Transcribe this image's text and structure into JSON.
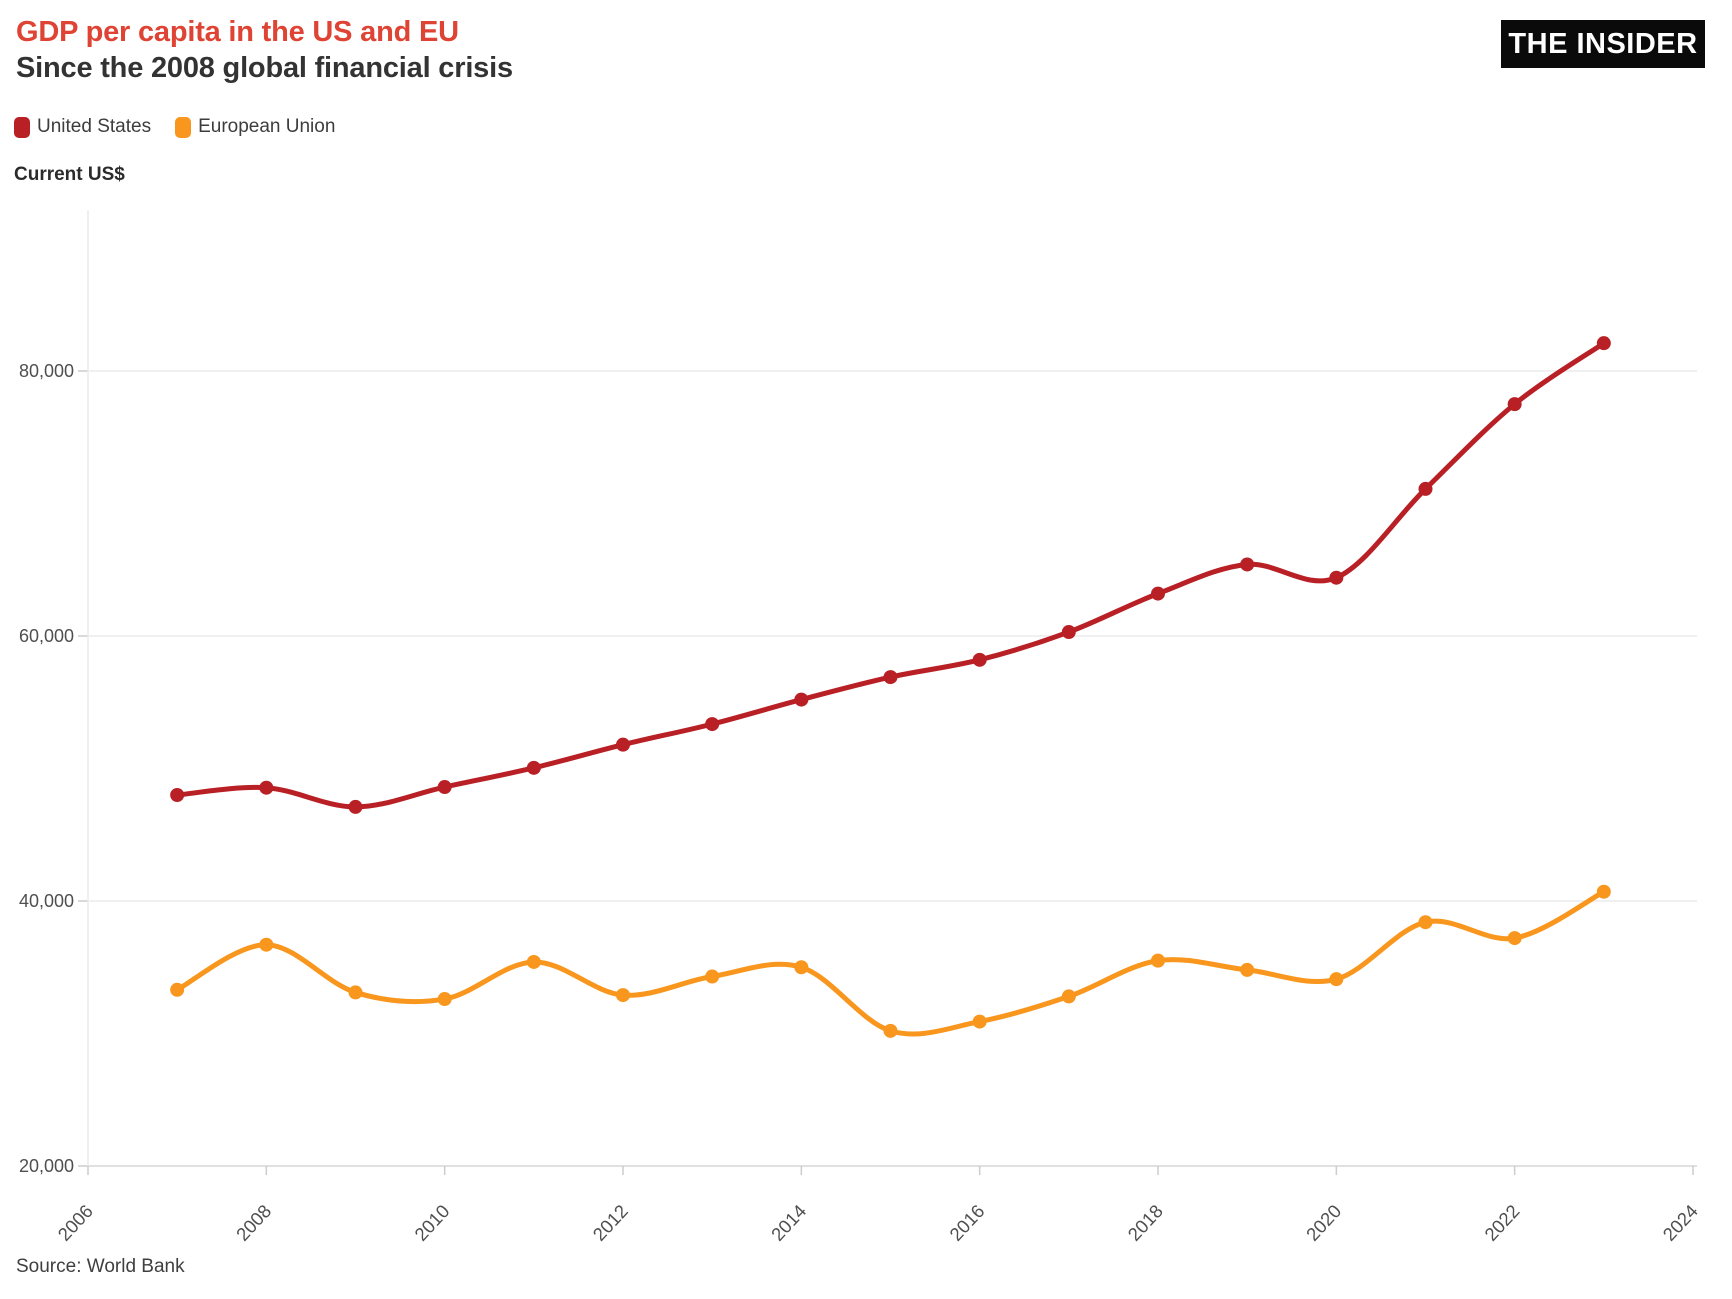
{
  "header": {
    "title": "GDP per capita in the US and EU",
    "subtitle": "Since the 2008 global financial crisis",
    "title_color": "#de4334",
    "logo_text": "THE INSIDER"
  },
  "y_axis_title": "Current US$",
  "source": "Source: World Bank",
  "colors": {
    "us_red": "#b82025",
    "eu_orange": "#f8961d",
    "grid": "#ececec",
    "baseline": "#d6d6d6",
    "tick": "#cccccc",
    "tick_label": "#4f4f4f"
  },
  "chart_data": {
    "type": "line",
    "title": "GDP per capita in the US and EU",
    "subtitle": "Since the 2008 global financial crisis",
    "ylabel": "Current US$",
    "x": [
      2007,
      2008,
      2009,
      2010,
      2011,
      2012,
      2013,
      2014,
      2015,
      2016,
      2017,
      2018,
      2019,
      2020,
      2021,
      2022,
      2023
    ],
    "series": [
      {
        "name": "United States",
        "color": "#b82025",
        "values": [
          48000,
          48550,
          47100,
          48600,
          50050,
          51800,
          53350,
          55200,
          56900,
          58200,
          60300,
          63200,
          65400,
          64400,
          71100,
          77500,
          82100
        ]
      },
      {
        "name": "European Union",
        "color": "#f8961d",
        "values": [
          33300,
          36700,
          33100,
          32600,
          35400,
          32900,
          34300,
          35000,
          30200,
          30900,
          32800,
          35500,
          34800,
          34100,
          38400,
          37200,
          40700
        ]
      }
    ],
    "xlim": [
      2006,
      2024
    ],
    "ylim": [
      20000,
      92000
    ],
    "xticks": [
      2006,
      2008,
      2010,
      2012,
      2014,
      2016,
      2018,
      2020,
      2022,
      2024
    ],
    "yticks": [
      20000,
      40000,
      60000,
      80000
    ],
    "grid": true,
    "legend_position": "top-left",
    "source": "Source: World Bank"
  }
}
